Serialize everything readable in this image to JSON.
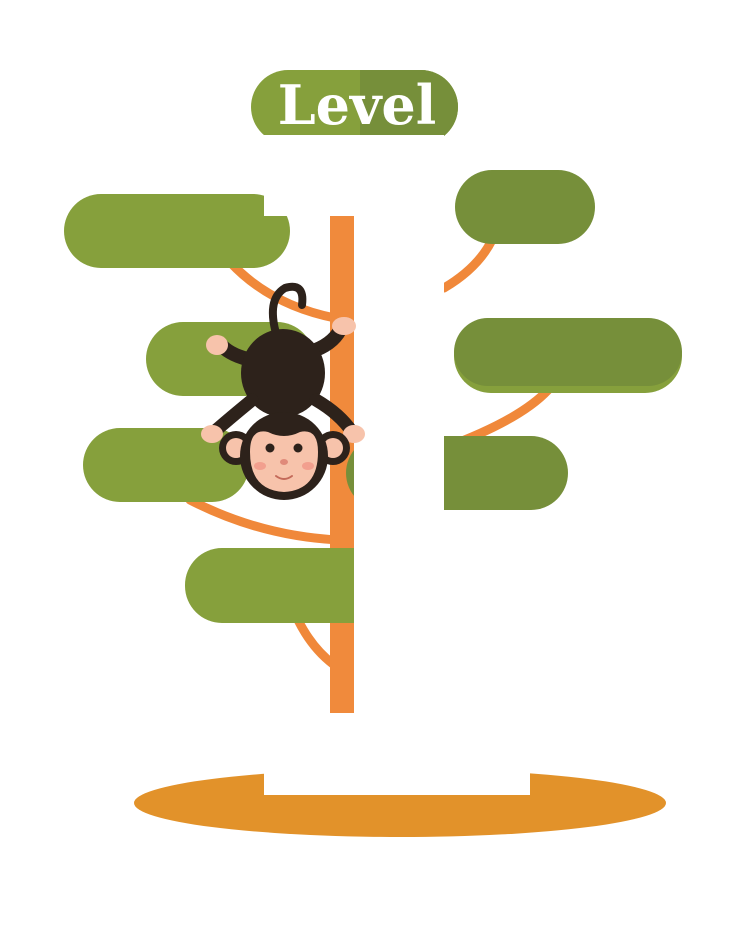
{
  "level_badge": {
    "label": "Level"
  },
  "colors": {
    "leaf_light": "#86a03c",
    "leaf_dark": "#768f3a",
    "branch": "#f0883a",
    "trunk": "#f08a3c",
    "ground": "#e2922a",
    "monkey_fur": "#2d221b",
    "monkey_skin": "#f7c3ab",
    "background": "#ffffff"
  },
  "icons": {
    "mascot": "monkey-icon"
  }
}
